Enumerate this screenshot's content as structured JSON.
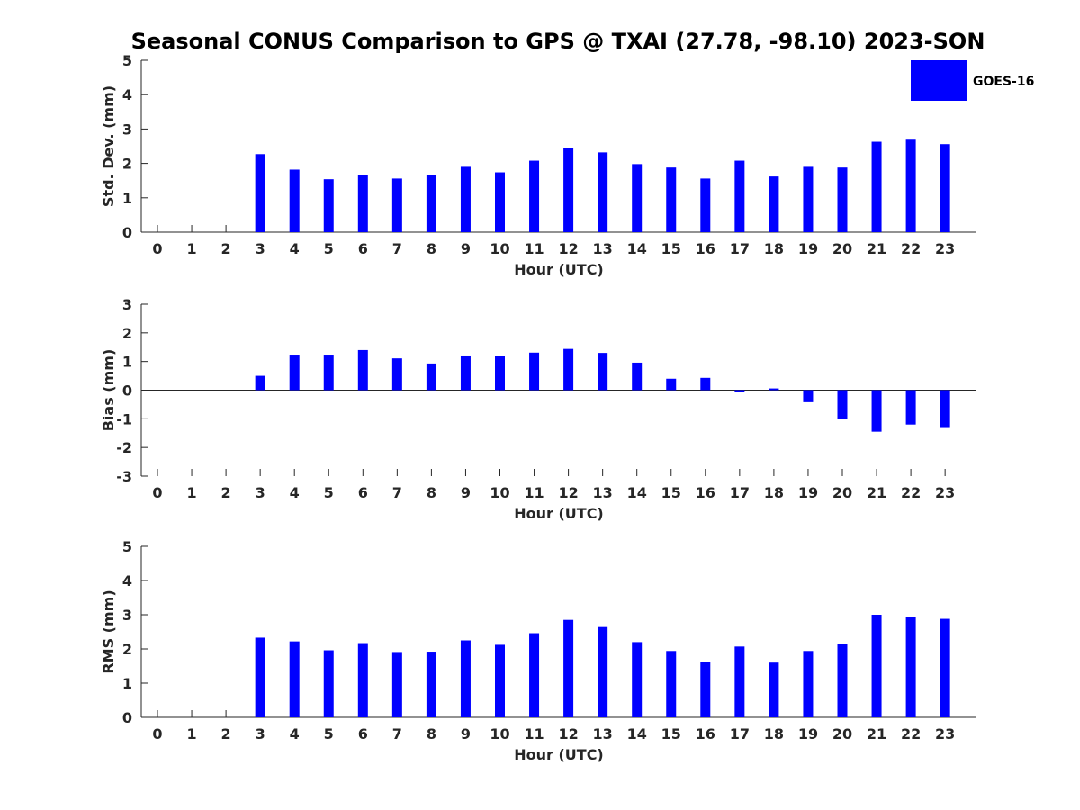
{
  "title": "Seasonal CONUS Comparison to GPS @ TXAI (27.78, -98.10) 2023-SON",
  "colors": {
    "bar": "#0000ff",
    "axis": "#262626",
    "background": "#ffffff"
  },
  "legend": {
    "label": "GOES-16",
    "placement": "top-right"
  },
  "chart_data": [
    {
      "type": "bar",
      "title": "Seasonal CONUS Comparison to GPS @ TXAI (27.78, -98.10) 2023-SON",
      "xlabel": "Hour (UTC)",
      "ylabel": "Std. Dev. (mm)",
      "ylim": [
        0,
        5
      ],
      "yticks": [
        "0",
        "1",
        "2",
        "3",
        "4",
        "5"
      ],
      "categories": [
        "0",
        "1",
        "2",
        "3",
        "4",
        "5",
        "6",
        "7",
        "8",
        "9",
        "10",
        "11",
        "12",
        "13",
        "14",
        "15",
        "16",
        "17",
        "18",
        "19",
        "20",
        "21",
        "22",
        "23"
      ],
      "series": [
        {
          "name": "GOES-16",
          "values": [
            null,
            null,
            null,
            2.27,
            1.82,
            1.54,
            1.67,
            1.56,
            1.67,
            1.9,
            1.74,
            2.08,
            2.45,
            2.32,
            1.98,
            1.88,
            1.56,
            2.08,
            1.62,
            1.9,
            1.88,
            2.63,
            2.69,
            2.56
          ]
        }
      ],
      "grid": false
    },
    {
      "type": "bar",
      "xlabel": "Hour (UTC)",
      "ylabel": "Bias (mm)",
      "ylim": [
        -3,
        3
      ],
      "yticks": [
        "-3",
        "-2",
        "-1",
        "0",
        "1",
        "2",
        "3"
      ],
      "categories": [
        "0",
        "1",
        "2",
        "3",
        "4",
        "5",
        "6",
        "7",
        "8",
        "9",
        "10",
        "11",
        "12",
        "13",
        "14",
        "15",
        "16",
        "17",
        "18",
        "19",
        "20",
        "21",
        "22",
        "23"
      ],
      "series": [
        {
          "name": "GOES-16",
          "values": [
            null,
            null,
            null,
            0.5,
            1.24,
            1.24,
            1.4,
            1.11,
            0.93,
            1.21,
            1.18,
            1.31,
            1.44,
            1.3,
            0.96,
            0.4,
            0.43,
            -0.04,
            0.06,
            -0.42,
            -1.02,
            -1.45,
            -1.2,
            -1.29
          ]
        }
      ],
      "grid": false
    },
    {
      "type": "bar",
      "xlabel": "Hour (UTC)",
      "ylabel": "RMS (mm)",
      "ylim": [
        0,
        5
      ],
      "yticks": [
        "0",
        "1",
        "2",
        "3",
        "4",
        "5"
      ],
      "categories": [
        "0",
        "1",
        "2",
        "3",
        "4",
        "5",
        "6",
        "7",
        "8",
        "9",
        "10",
        "11",
        "12",
        "13",
        "14",
        "15",
        "16",
        "17",
        "18",
        "19",
        "20",
        "21",
        "22",
        "23"
      ],
      "series": [
        {
          "name": "GOES-16",
          "values": [
            null,
            null,
            null,
            2.33,
            2.22,
            1.96,
            2.17,
            1.91,
            1.92,
            2.25,
            2.12,
            2.46,
            2.85,
            2.64,
            2.2,
            1.94,
            1.63,
            2.07,
            1.6,
            1.94,
            2.15,
            3.0,
            2.93,
            2.88
          ]
        }
      ],
      "grid": false
    }
  ]
}
